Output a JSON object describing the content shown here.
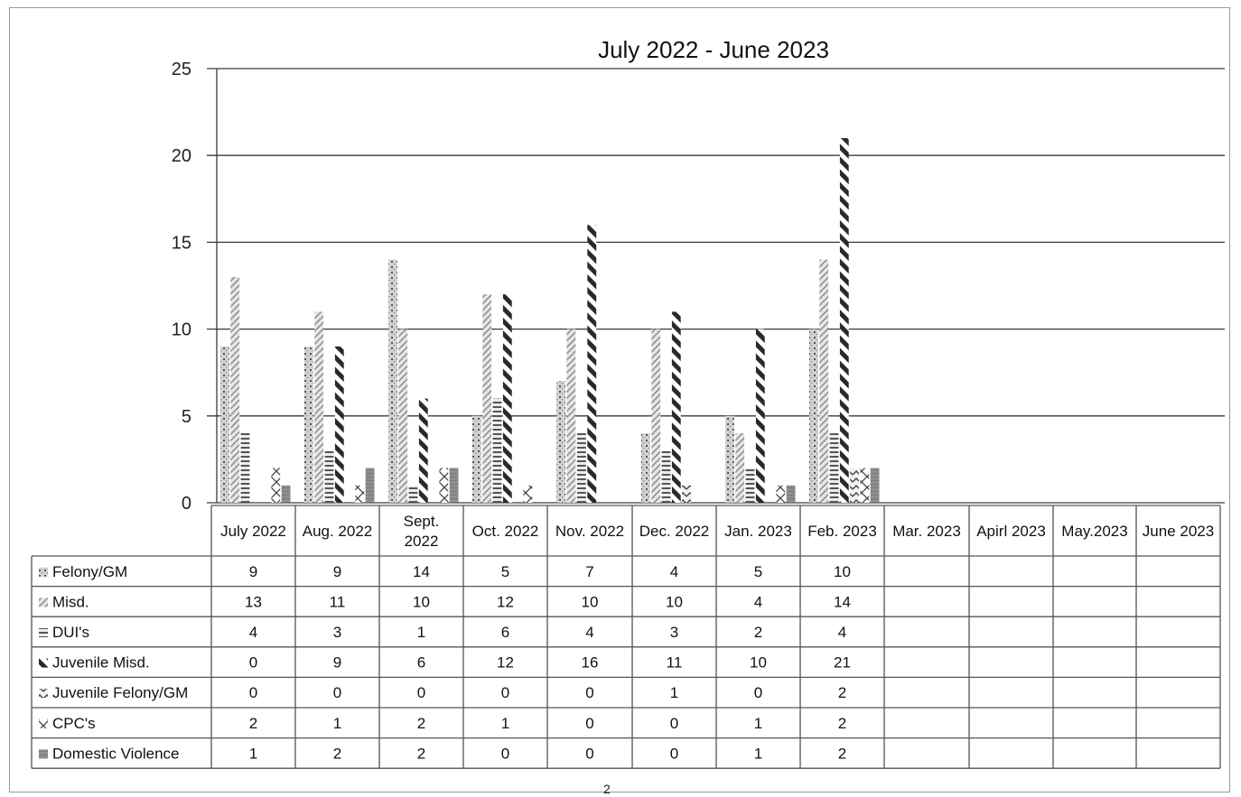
{
  "chart_data": {
    "type": "bar",
    "title": "July 2022 - June 2023",
    "categories": [
      "July 2022",
      "Aug. 2022",
      "Sept. 2022",
      "Oct. 2022",
      "Nov. 2022",
      "Dec. 2022",
      "Jan. 2023",
      "Feb. 2023",
      "Mar. 2023",
      "April 2023",
      "May.2023",
      "June 2023"
    ],
    "category_display": [
      [
        "July 2022"
      ],
      [
        "Aug. 2022"
      ],
      [
        "Sept.",
        "2022"
      ],
      [
        "Oct. 2022"
      ],
      [
        "Nov. 2022"
      ],
      [
        "Dec. 2022"
      ],
      [
        "Jan. 2023"
      ],
      [
        "Feb. 2023"
      ],
      [
        "Mar. 2023"
      ],
      [
        "Apirl 2023"
      ],
      [
        "May.2023"
      ],
      [
        "June 2023"
      ]
    ],
    "ylim": [
      0,
      25
    ],
    "yticks": [
      0,
      5,
      10,
      15,
      20,
      25
    ],
    "grid": true,
    "legend": "data-table",
    "series": [
      {
        "name": "Felony/GM",
        "pattern": "dots",
        "values": [
          9,
          9,
          14,
          5,
          7,
          4,
          5,
          10,
          null,
          null,
          null,
          null
        ]
      },
      {
        "name": "Misd.",
        "pattern": "diagonal-fine",
        "values": [
          13,
          11,
          10,
          12,
          10,
          10,
          4,
          14,
          null,
          null,
          null,
          null
        ]
      },
      {
        "name": "DUI's",
        "pattern": "horizontal",
        "values": [
          4,
          3,
          1,
          6,
          4,
          3,
          2,
          4,
          null,
          null,
          null,
          null
        ]
      },
      {
        "name": "Juvenile Misd.",
        "pattern": "diagonal-bold",
        "values": [
          0,
          9,
          6,
          12,
          16,
          11,
          10,
          21,
          null,
          null,
          null,
          null
        ]
      },
      {
        "name": "Juvenile Felony/GM",
        "pattern": "zigzag",
        "values": [
          0,
          0,
          0,
          0,
          0,
          1,
          0,
          2,
          null,
          null,
          null,
          null
        ]
      },
      {
        "name": "CPC's",
        "pattern": "cross",
        "values": [
          2,
          1,
          2,
          1,
          0,
          0,
          1,
          2,
          null,
          null,
          null,
          null
        ]
      },
      {
        "name": "Domestic Violence",
        "pattern": "solid-gray",
        "values": [
          1,
          2,
          2,
          0,
          0,
          0,
          1,
          2,
          null,
          null,
          null,
          null
        ]
      }
    ]
  },
  "colors": {
    "gridline": "#3a3a3a",
    "bar_fill": "#8a8a8a",
    "bar_dark": "#2a2a2a",
    "bar_light": "#b8b8b8",
    "table_line": "#555555"
  },
  "footer": {
    "page_mark": "2"
  }
}
